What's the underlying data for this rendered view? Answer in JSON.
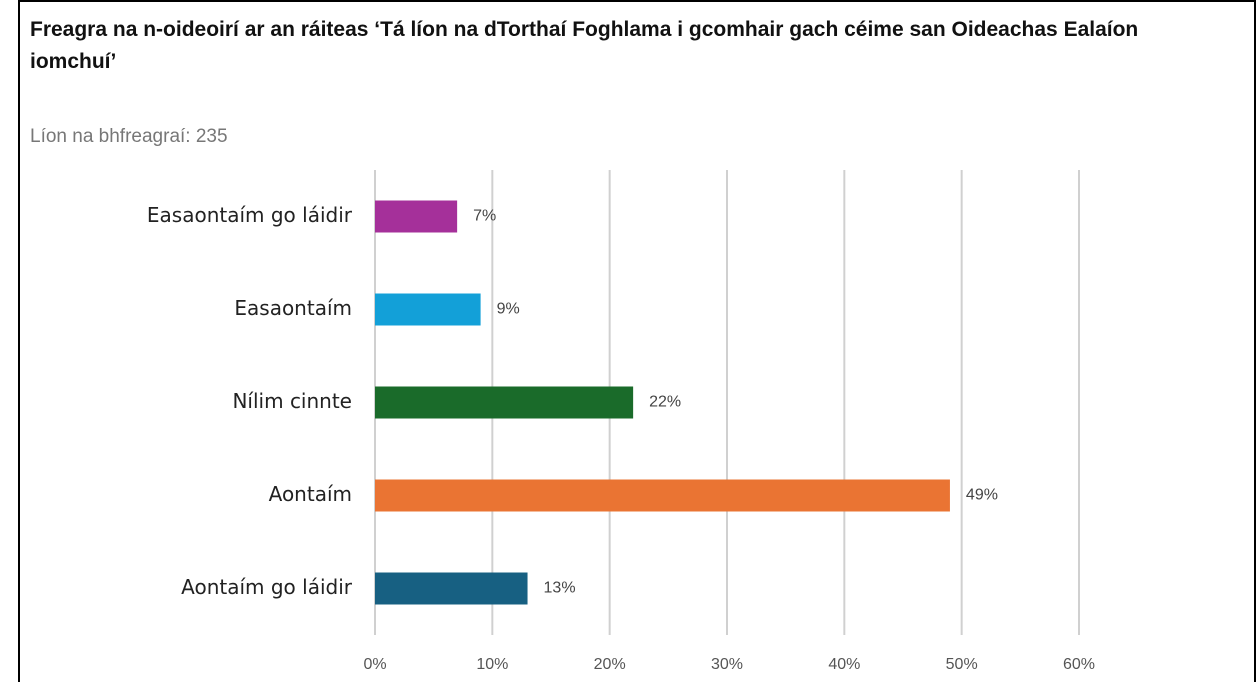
{
  "chart_data": {
    "type": "bar",
    "orientation": "horizontal",
    "title": "Freagra na n-oideoirí ar an ráiteas ‘Tá líon na dTorthaí Foghlama i gcomhair gach céime san Oideachas Ealaíon iomchuí’",
    "subtitle": "Líon na bhfreagraí: 235",
    "categories": [
      "Easaontaím go láidir",
      "Easaontaím",
      "Nílim cinnte",
      "Aontaím",
      "Aontaím go láidir"
    ],
    "values": [
      7,
      9,
      22,
      49,
      13
    ],
    "value_labels": [
      "7%",
      "9%",
      "22%",
      "49%",
      "13%"
    ],
    "colors": [
      "#a5309a",
      "#13a0d8",
      "#1a6b2a",
      "#ea7433",
      "#176082"
    ],
    "xlim": [
      0,
      60
    ],
    "xticks": [
      {
        "value": 0,
        "label": "0%"
      },
      {
        "value": 10,
        "label": "10%"
      },
      {
        "value": 20,
        "label": "20%"
      },
      {
        "value": 30,
        "label": "30%"
      },
      {
        "value": 40,
        "label": "40%"
      },
      {
        "value": 50,
        "label": "50%"
      },
      {
        "value": 60,
        "label": "60%"
      }
    ],
    "grid": true
  }
}
